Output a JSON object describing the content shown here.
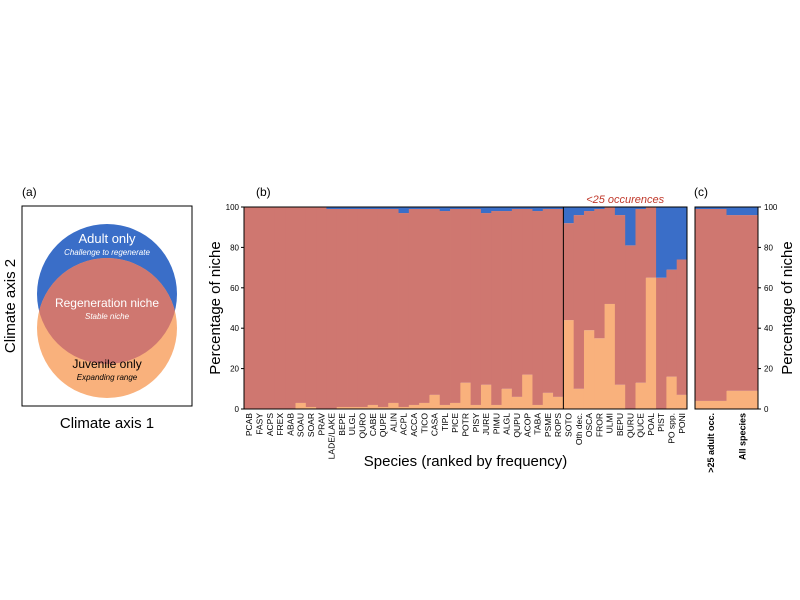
{
  "panels": {
    "a": {
      "label": "(a)",
      "xlabel": "Climate axis 1",
      "ylabel": "Climate axis 2",
      "adult_title": "Adult only",
      "adult_sub": "Challenge to regenerate",
      "regen_title": "Regeneration niche",
      "regen_sub": "Stable niche",
      "juv_title": "Juvenile only",
      "juv_sub": "Expanding range"
    },
    "b": {
      "label": "(b)",
      "annotation": "<25 occurences"
    },
    "c": {
      "label": "(c)"
    }
  },
  "colors": {
    "adult": "#3a6ec8",
    "regeneration": "#cf7770",
    "juvenile": "#f9b17c",
    "annotation": "#c0392b"
  },
  "chart_data": [
    {
      "type": "bar",
      "stacked": true,
      "xlabel": "Species (ranked by frequency)",
      "ylabel": "Percentage of niche",
      "ylim": [
        0,
        100
      ],
      "yticks": [
        0,
        20,
        40,
        60,
        80,
        100
      ],
      "categories": [
        "PCAB",
        "FASY",
        "ACPS",
        "FREX",
        "ABAB",
        "SOAU",
        "SOAR",
        "PRAV",
        "LADE/LAKE",
        "BEPE",
        "ULGL",
        "QURO",
        "CABE",
        "QUPE",
        "ALIN",
        "ACPL",
        "ACCA",
        "TICO",
        "CASA",
        "TIPL",
        "PICE",
        "POTR",
        "PISY",
        "JURE",
        "PIMU",
        "ALGL",
        "QUPU",
        "ACOP",
        "TABA",
        "PSME",
        "ROPS",
        "SOTO",
        "Oth dec.",
        "OSCA",
        "FROR",
        "ULMI",
        "BEPU",
        "QURU",
        "QUCE",
        "POAL",
        "PIST",
        "PO spp.",
        "PONI"
      ],
      "series": [
        {
          "name": "Juvenile only",
          "values": [
            0,
            0,
            0,
            0,
            0,
            3,
            1,
            0,
            0,
            1,
            1,
            1,
            2,
            1,
            3,
            1,
            2,
            3,
            7,
            2,
            3,
            13,
            2,
            12,
            2,
            10,
            6,
            17,
            2,
            8,
            6,
            44,
            10,
            39,
            35,
            52,
            12,
            0,
            13,
            65,
            0,
            16,
            7
          ]
        },
        {
          "name": "Regeneration niche",
          "values": [
            100,
            100,
            100,
            100,
            100,
            97,
            99,
            100,
            99,
            98,
            98,
            98,
            97,
            98,
            96,
            96,
            97,
            96,
            92,
            96,
            96,
            86,
            97,
            85,
            96,
            88,
            93,
            82,
            96,
            91,
            93,
            48,
            86,
            59,
            64,
            48,
            84,
            81,
            86,
            35,
            65,
            53,
            67
          ]
        },
        {
          "name": "Adult only",
          "values": [
            0,
            0,
            0,
            0,
            0,
            0,
            0,
            0,
            1,
            1,
            1,
            1,
            1,
            1,
            1,
            3,
            1,
            1,
            1,
            2,
            1,
            1,
            1,
            3,
            2,
            2,
            1,
            1,
            2,
            1,
            1,
            8,
            4,
            2,
            1,
            0,
            4,
            19,
            1,
            0,
            35,
            31,
            26
          ]
        }
      ]
    },
    {
      "type": "bar",
      "stacked": true,
      "ylabel": "Percentage of niche",
      "ylim": [
        0,
        100
      ],
      "yticks": [
        0,
        20,
        40,
        60,
        80,
        100
      ],
      "categories": [
        ">25 adult occ.",
        "All species"
      ],
      "series": [
        {
          "name": "Juvenile only",
          "values": [
            4,
            9
          ]
        },
        {
          "name": "Regeneration niche",
          "values": [
            95,
            87
          ]
        },
        {
          "name": "Adult only",
          "values": [
            1,
            4
          ]
        }
      ]
    }
  ]
}
